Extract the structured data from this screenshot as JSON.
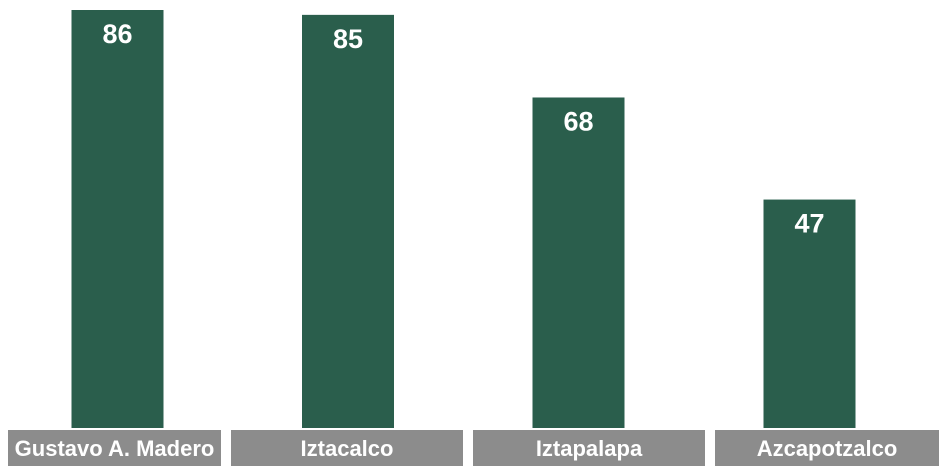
{
  "chart_data": {
    "type": "bar",
    "categories": [
      "Gustavo A. Madero",
      "Iztacalco",
      "Iztapalapa",
      "Azcapotzalco"
    ],
    "values": [
      86,
      85,
      68,
      47
    ],
    "title": "",
    "xlabel": "",
    "ylabel": "",
    "ylim": [
      0,
      86
    ],
    "grid": false,
    "legend": "none",
    "data_labels": true,
    "colors": {
      "bar": "#2a5e4c",
      "category_box": "#8c8c8c",
      "label_text": "#ffffff"
    }
  }
}
